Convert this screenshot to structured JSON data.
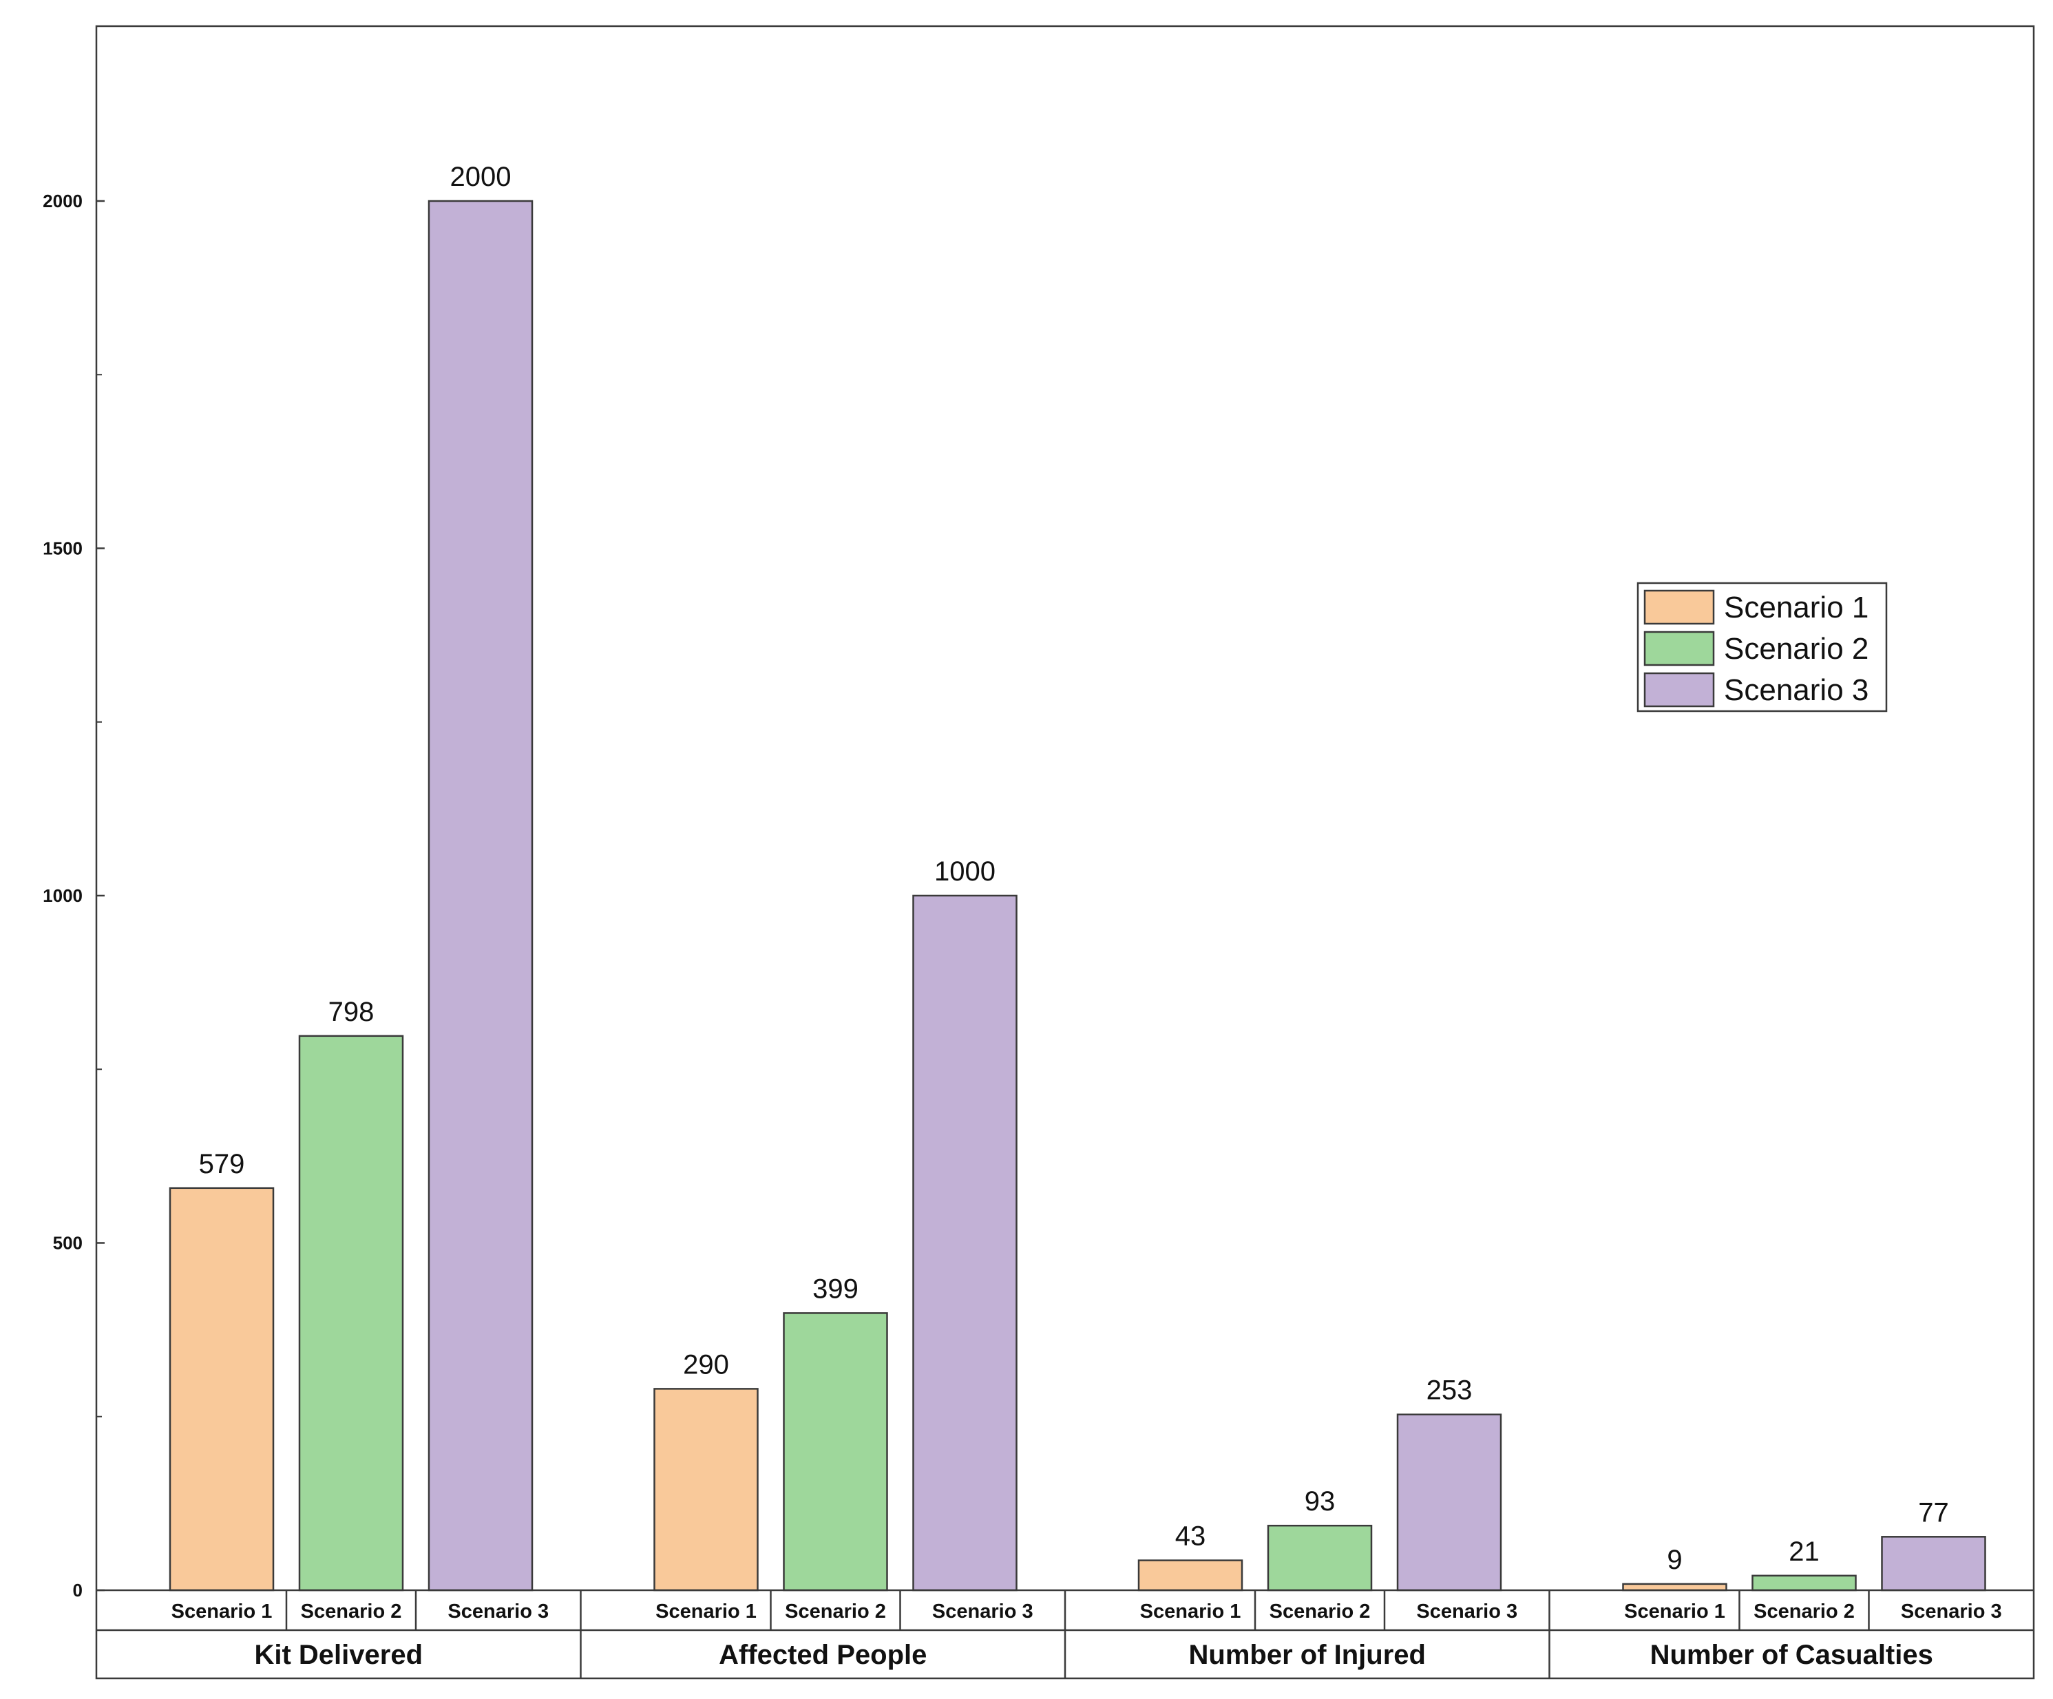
{
  "chart_data": {
    "type": "bar",
    "title": "",
    "xlabel": "",
    "ylabel": "",
    "ylim": [
      0,
      2250
    ],
    "yticks": [
      0,
      500,
      1000,
      1500,
      2000
    ],
    "grid": false,
    "legend_position": "right",
    "categories": [
      "Kit Delivered",
      "Affected People",
      "Number of Injured",
      "Number of Casualties"
    ],
    "scenario_labels": [
      "Scenario 1",
      "Scenario 2",
      "Scenario 3"
    ],
    "series": [
      {
        "name": "Scenario 1",
        "color": "#f9c99a",
        "values": [
          579,
          290,
          43,
          9
        ]
      },
      {
        "name": "Scenario 2",
        "color": "#9ed79b",
        "values": [
          798,
          399,
          93,
          21
        ]
      },
      {
        "name": "Scenario 3",
        "color": "#c2b1d6",
        "values": [
          2000,
          1000,
          253,
          77
        ]
      }
    ]
  }
}
